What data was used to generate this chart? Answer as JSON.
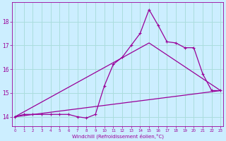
{
  "xlabel": "Windchill (Refroidissement éolien,°C)",
  "bg_color": "#cceeff",
  "grid_color": "#aadddd",
  "line_color": "#990099",
  "x_ticks": [
    0,
    1,
    2,
    3,
    4,
    5,
    6,
    7,
    8,
    9,
    10,
    11,
    12,
    13,
    14,
    15,
    16,
    17,
    18,
    19,
    20,
    21,
    22,
    23
  ],
  "y_ticks": [
    14,
    15,
    16,
    17,
    18
  ],
  "ylim": [
    13.6,
    18.8
  ],
  "xlim": [
    -0.3,
    23.3
  ],
  "line1_x": [
    0,
    1,
    2,
    3,
    4,
    5,
    6,
    7,
    8,
    9,
    10,
    11,
    12,
    13,
    14,
    15,
    16,
    17,
    18,
    19,
    20,
    21,
    22,
    23
  ],
  "line1_y": [
    14.0,
    14.1,
    14.1,
    14.1,
    14.1,
    14.1,
    14.1,
    14.0,
    13.95,
    14.1,
    15.3,
    16.2,
    16.5,
    17.0,
    17.5,
    18.5,
    17.85,
    17.15,
    17.1,
    16.9,
    16.9,
    15.8,
    15.1,
    15.1
  ],
  "line2_x": [
    0,
    23
  ],
  "line2_y": [
    14.0,
    15.1
  ],
  "line3_x": [
    0,
    15,
    23
  ],
  "line3_y": [
    14.0,
    17.1,
    15.1
  ],
  "marker": "+",
  "markersize": 3.5,
  "linewidth": 0.9
}
